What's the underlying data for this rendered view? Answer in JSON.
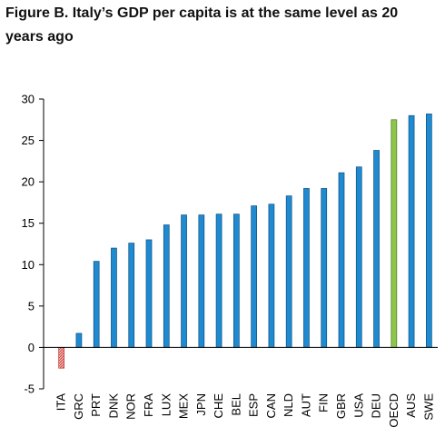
{
  "title": "Figure B.  Italy’s GDP per capita is at the same level as 20 years ago",
  "colors": {
    "bar": "#1f8ad0",
    "bar_stroke": "#0b4f84",
    "highlight": "#8fc54a",
    "highlight_stroke": "#3f7a19",
    "negative": "#f2b2b6",
    "negative_stroke": "#c0392b"
  },
  "chart_data": {
    "type": "bar",
    "title": "Figure B.  Italy’s GDP per capita is at the same level as 20 years ago",
    "xlabel": "",
    "ylabel": "",
    "ylim": [
      -5,
      30
    ],
    "yticks": [
      -5,
      0,
      5,
      10,
      15,
      20,
      25,
      30
    ],
    "grid": false,
    "legend": "none",
    "categories": [
      "ITA",
      "GRC",
      "PRT",
      "DNK",
      "NOR",
      "FRA",
      "LUX",
      "MEX",
      "JPN",
      "CHE",
      "BEL",
      "ESP",
      "CAN",
      "NLD",
      "AUT",
      "FIN",
      "GBR",
      "USA",
      "DEU",
      "OECD",
      "AUS",
      "SWE"
    ],
    "values": [
      -2.5,
      1.7,
      10.4,
      12.0,
      12.6,
      13.0,
      14.8,
      16.0,
      16.0,
      16.1,
      16.1,
      17.1,
      17.3,
      18.3,
      19.2,
      19.2,
      21.1,
      21.8,
      23.8,
      27.5,
      28.0,
      28.2
    ],
    "highlight": "OECD"
  }
}
